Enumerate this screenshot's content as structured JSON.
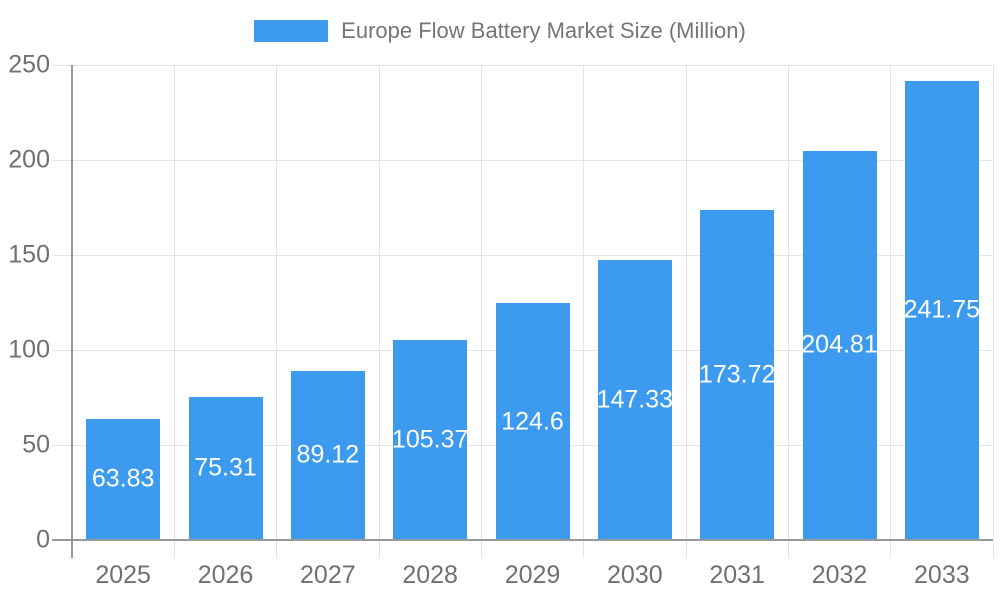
{
  "chart_data": {
    "type": "bar",
    "title": "Europe Flow Battery Market Size (Million)",
    "categories": [
      "2025",
      "2026",
      "2027",
      "2028",
      "2029",
      "2030",
      "2031",
      "2032",
      "2033"
    ],
    "values": [
      63.83,
      75.31,
      89.12,
      105.37,
      124.6,
      147.33,
      173.72,
      204.81,
      241.75
    ],
    "value_labels": [
      "63.83",
      "75.31",
      "89.12",
      "105.37",
      "124.6",
      "147.33",
      "173.72",
      "204.81",
      "241.75"
    ],
    "xlabel": "",
    "ylabel": "",
    "ylim": [
      0,
      250
    ],
    "yticks": [
      0,
      50,
      100,
      150,
      200,
      250
    ],
    "grid": true,
    "legend_position": "top",
    "legend_entries": [
      "Europe Flow Battery Market Size (Million)"
    ],
    "colors": {
      "bar": "#3d9bef",
      "bar_label": "#ffffff",
      "tick_text": "#707070",
      "title_text": "#757575",
      "axis_line": "#999999",
      "gridline": "#e5e5e5",
      "background": "#ffffff"
    }
  }
}
